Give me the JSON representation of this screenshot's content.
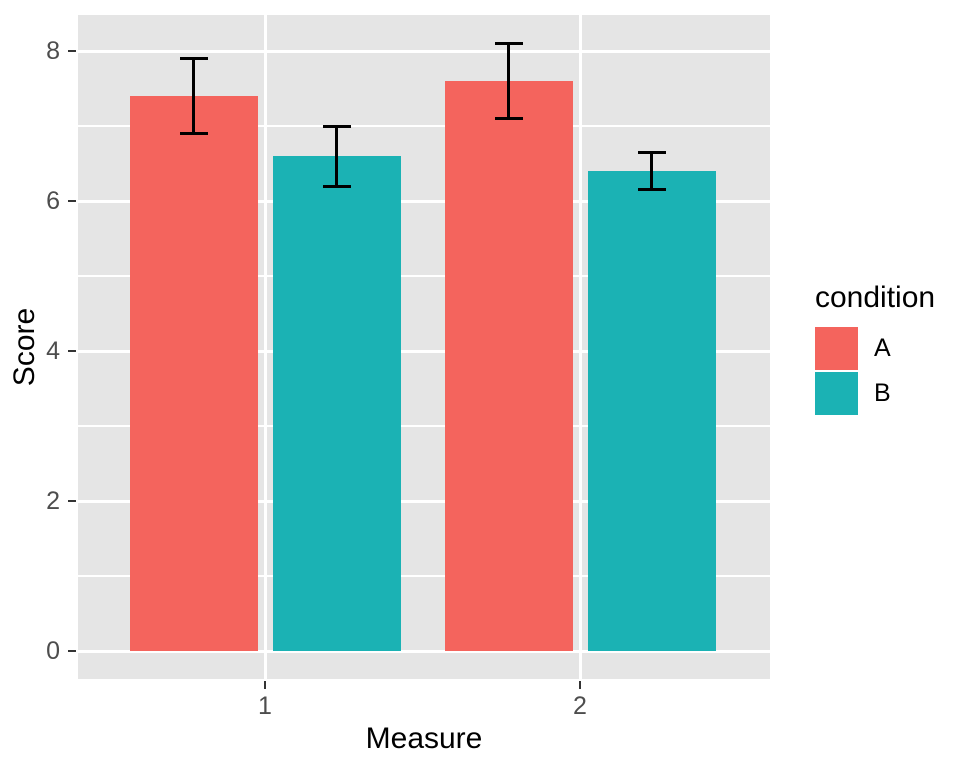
{
  "chart_data": {
    "type": "bar",
    "title": "",
    "xlabel": "Measure",
    "ylabel": "Score",
    "categories": [
      "1",
      "2"
    ],
    "series": [
      {
        "name": "A",
        "color": "#F4645D",
        "values": [
          7.4,
          7.6
        ],
        "error_low": [
          6.9,
          7.1
        ],
        "error_high": [
          7.9,
          8.1
        ]
      },
      {
        "name": "B",
        "color": "#1BB2B4",
        "values": [
          6.6,
          6.4
        ],
        "error_low": [
          6.2,
          6.15
        ],
        "error_high": [
          7.0,
          6.65
        ]
      }
    ],
    "yticks": [
      0,
      2,
      4,
      6,
      8
    ],
    "yticks_minor": [
      1,
      3,
      5,
      7
    ],
    "ylim": [
      -0.37,
      8.48
    ],
    "grid": true,
    "legend": {
      "title": "condition",
      "position": "right",
      "entries": [
        "A",
        "B"
      ]
    },
    "colors": {
      "panel_bg": "#E5E5E5",
      "grid": "#FFFFFF",
      "errorbar": "#000000",
      "tick_text": "#4D4D4D",
      "axis_title_text": "#000000",
      "tick_mark": "#333333"
    }
  }
}
